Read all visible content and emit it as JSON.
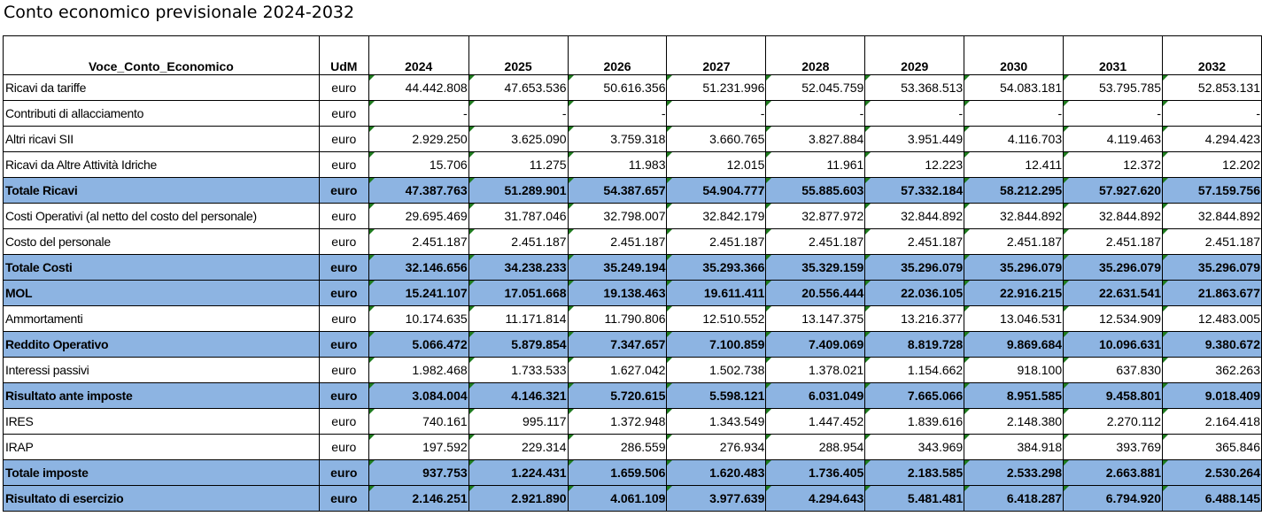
{
  "title": "Conto economico previsionale 2024-2032",
  "headers": {
    "voce": "Voce_Conto_Economico",
    "udm": "UdM",
    "years": [
      "2024",
      "2025",
      "2026",
      "2027",
      "2028",
      "2029",
      "2030",
      "2031",
      "2032"
    ]
  },
  "colors": {
    "total_row_fill": "#8db4e2",
    "cell_marker": "#1e7b1e"
  },
  "rows": [
    {
      "label": "Ricavi da tariffe",
      "udm": "euro",
      "total": false,
      "values": [
        "44.442.808",
        "47.653.536",
        "50.616.356",
        "51.231.996",
        "52.045.759",
        "53.368.513",
        "54.083.181",
        "53.795.785",
        "52.853.131"
      ]
    },
    {
      "label": "Contributi di allacciamento",
      "udm": "euro",
      "total": false,
      "values": [
        "-",
        "-",
        "-",
        "-",
        "-",
        "-",
        "-",
        "-",
        "-"
      ]
    },
    {
      "label": "Altri ricavi SII",
      "udm": "euro",
      "total": false,
      "values": [
        "2.929.250",
        "3.625.090",
        "3.759.318",
        "3.660.765",
        "3.827.884",
        "3.951.449",
        "4.116.703",
        "4.119.463",
        "4.294.423"
      ]
    },
    {
      "label": "Ricavi da Altre Attività Idriche",
      "udm": "euro",
      "total": false,
      "values": [
        "15.706",
        "11.275",
        "11.983",
        "12.015",
        "11.961",
        "12.223",
        "12.411",
        "12.372",
        "12.202"
      ]
    },
    {
      "label": "Totale Ricavi",
      "udm": "euro",
      "total": true,
      "values": [
        "47.387.763",
        "51.289.901",
        "54.387.657",
        "54.904.777",
        "55.885.603",
        "57.332.184",
        "58.212.295",
        "57.927.620",
        "57.159.756"
      ]
    },
    {
      "label": "Costi Operativi (al netto del costo del personale)",
      "udm": "euro",
      "total": false,
      "values": [
        "29.695.469",
        "31.787.046",
        "32.798.007",
        "32.842.179",
        "32.877.972",
        "32.844.892",
        "32.844.892",
        "32.844.892",
        "32.844.892"
      ]
    },
    {
      "label": "Costo del personale",
      "udm": "euro",
      "total": false,
      "values": [
        "2.451.187",
        "2.451.187",
        "2.451.187",
        "2.451.187",
        "2.451.187",
        "2.451.187",
        "2.451.187",
        "2.451.187",
        "2.451.187"
      ]
    },
    {
      "label": "Totale  Costi",
      "udm": "euro",
      "total": true,
      "values": [
        "32.146.656",
        "34.238.233",
        "35.249.194",
        "35.293.366",
        "35.329.159",
        "35.296.079",
        "35.296.079",
        "35.296.079",
        "35.296.079"
      ]
    },
    {
      "label": "MOL",
      "udm": "euro",
      "total": true,
      "values": [
        "15.241.107",
        "17.051.668",
        "19.138.463",
        "19.611.411",
        "20.556.444",
        "22.036.105",
        "22.916.215",
        "22.631.541",
        "21.863.677"
      ]
    },
    {
      "label": "Ammortamenti",
      "udm": "euro",
      "total": false,
      "values": [
        "10.174.635",
        "11.171.814",
        "11.790.806",
        "12.510.552",
        "13.147.375",
        "13.216.377",
        "13.046.531",
        "12.534.909",
        "12.483.005"
      ]
    },
    {
      "label": "Reddito Operativo",
      "udm": "euro",
      "total": true,
      "values": [
        "5.066.472",
        "5.879.854",
        "7.347.657",
        "7.100.859",
        "7.409.069",
        "8.819.728",
        "9.869.684",
        "10.096.631",
        "9.380.672"
      ]
    },
    {
      "label": "Interessi passivi",
      "udm": "euro",
      "total": false,
      "values": [
        "1.982.468",
        "1.733.533",
        "1.627.042",
        "1.502.738",
        "1.378.021",
        "1.154.662",
        "918.100",
        "637.830",
        "362.263"
      ]
    },
    {
      "label": "Risultato ante imposte",
      "udm": "euro",
      "total": true,
      "values": [
        "3.084.004",
        "4.146.321",
        "5.720.615",
        "5.598.121",
        "6.031.049",
        "7.665.066",
        "8.951.585",
        "9.458.801",
        "9.018.409"
      ]
    },
    {
      "label": "IRES",
      "udm": "euro",
      "total": false,
      "values": [
        "740.161",
        "995.117",
        "1.372.948",
        "1.343.549",
        "1.447.452",
        "1.839.616",
        "2.148.380",
        "2.270.112",
        "2.164.418"
      ]
    },
    {
      "label": "IRAP",
      "udm": "euro",
      "total": false,
      "values": [
        "197.592",
        "229.314",
        "286.559",
        "276.934",
        "288.954",
        "343.969",
        "384.918",
        "393.769",
        "365.846"
      ]
    },
    {
      "label": "Totale imposte",
      "udm": "euro",
      "total": true,
      "values": [
        "937.753",
        "1.224.431",
        "1.659.506",
        "1.620.483",
        "1.736.405",
        "2.183.585",
        "2.533.298",
        "2.663.881",
        "2.530.264"
      ]
    },
    {
      "label": "Risultato di esercizio",
      "udm": "euro",
      "total": true,
      "values": [
        "2.146.251",
        "2.921.890",
        "4.061.109",
        "3.977.639",
        "4.294.643",
        "5.481.481",
        "6.418.287",
        "6.794.920",
        "6.488.145"
      ]
    }
  ]
}
